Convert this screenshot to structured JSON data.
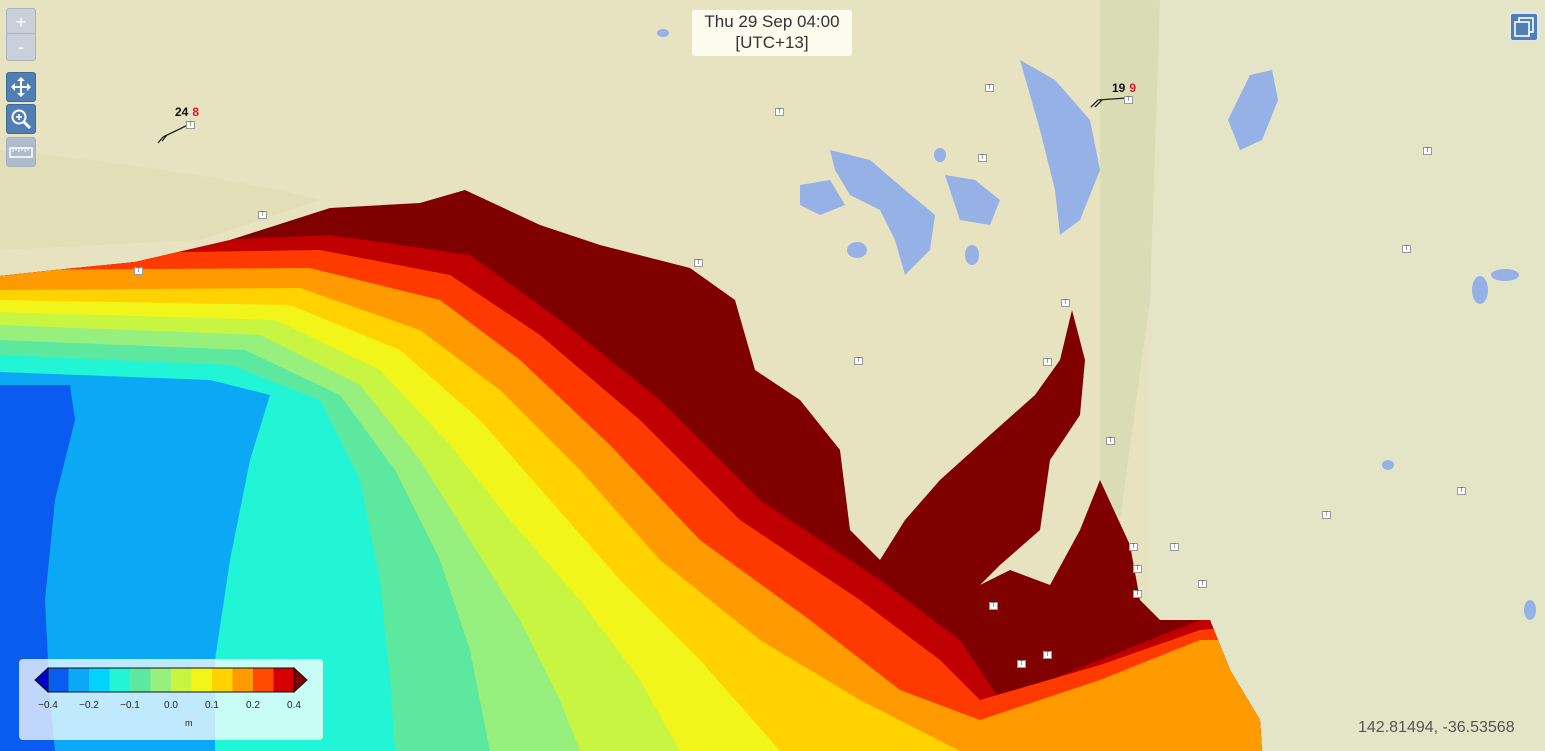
{
  "time_box": {
    "line1": "Thu 29 Sep 04:00",
    "line2": "[UTC+13]"
  },
  "zoom_controls": {
    "zoom_in_label": "+",
    "zoom_out_label": "-"
  },
  "tools": [
    {
      "name": "pan-tool",
      "icon": "pan-arrows-icon",
      "active": true
    },
    {
      "name": "zoom-box-tool",
      "icon": "magnifier-icon",
      "active": true
    },
    {
      "name": "measure-tool",
      "icon": "ruler-icon",
      "active": false
    }
  ],
  "layers_button": {
    "icon": "layers-icon"
  },
  "coordinates": "142.81494, -36.53568",
  "stations": [
    {
      "speed": "24",
      "value": "8"
    },
    {
      "speed": "19",
      "value": "9"
    }
  ],
  "legend": {
    "unit": "m",
    "ticks": [
      "−0.4",
      "−0.2",
      "−0.1",
      "0.0",
      "0.1",
      "0.2",
      "0.4"
    ],
    "colors": [
      "#0000cd",
      "#0a5cf0",
      "#0aa8f5",
      "#00d4ff",
      "#22f5d5",
      "#5de8a0",
      "#97f07d",
      "#c7f542",
      "#f2f51a",
      "#ffd200",
      "#ff9b00",
      "#ff4a00",
      "#d60000",
      "#800000"
    ]
  },
  "colors": {
    "land": "#e7e3c0",
    "lake": "#95b1e6",
    "accent": "#4f7fb3"
  }
}
